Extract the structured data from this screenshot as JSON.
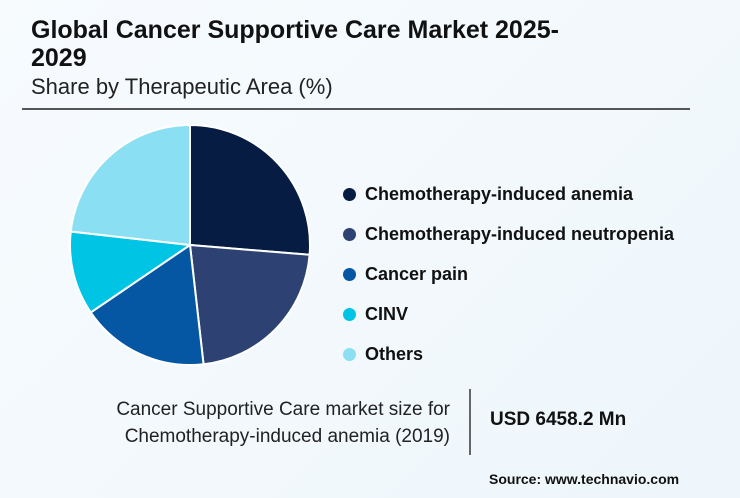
{
  "chart_data": {
    "type": "pie",
    "title": "Global Cancer Supportive Care Market 2025-2029",
    "subtitle": "Share by Therapeutic Area (%)",
    "categories": [
      "Chemotherapy-induced anemia",
      "Chemotherapy-induced neutropenia",
      "Cancer pain",
      "CINV",
      "Others"
    ],
    "values": [
      26.3,
      21.9,
      17.3,
      11.3,
      23.2
    ],
    "colors": [
      "#061c42",
      "#2d4273",
      "#0556a3",
      "#00c4e4",
      "#8ae0f2"
    ],
    "legend_position": "right"
  },
  "footer": {
    "note_line1": "Cancer Supportive Care market size for",
    "note_line2": "Chemotherapy-induced anemia (2019)",
    "value": "USD 6458.2 Mn",
    "source": "Source: www.technavio.com"
  }
}
